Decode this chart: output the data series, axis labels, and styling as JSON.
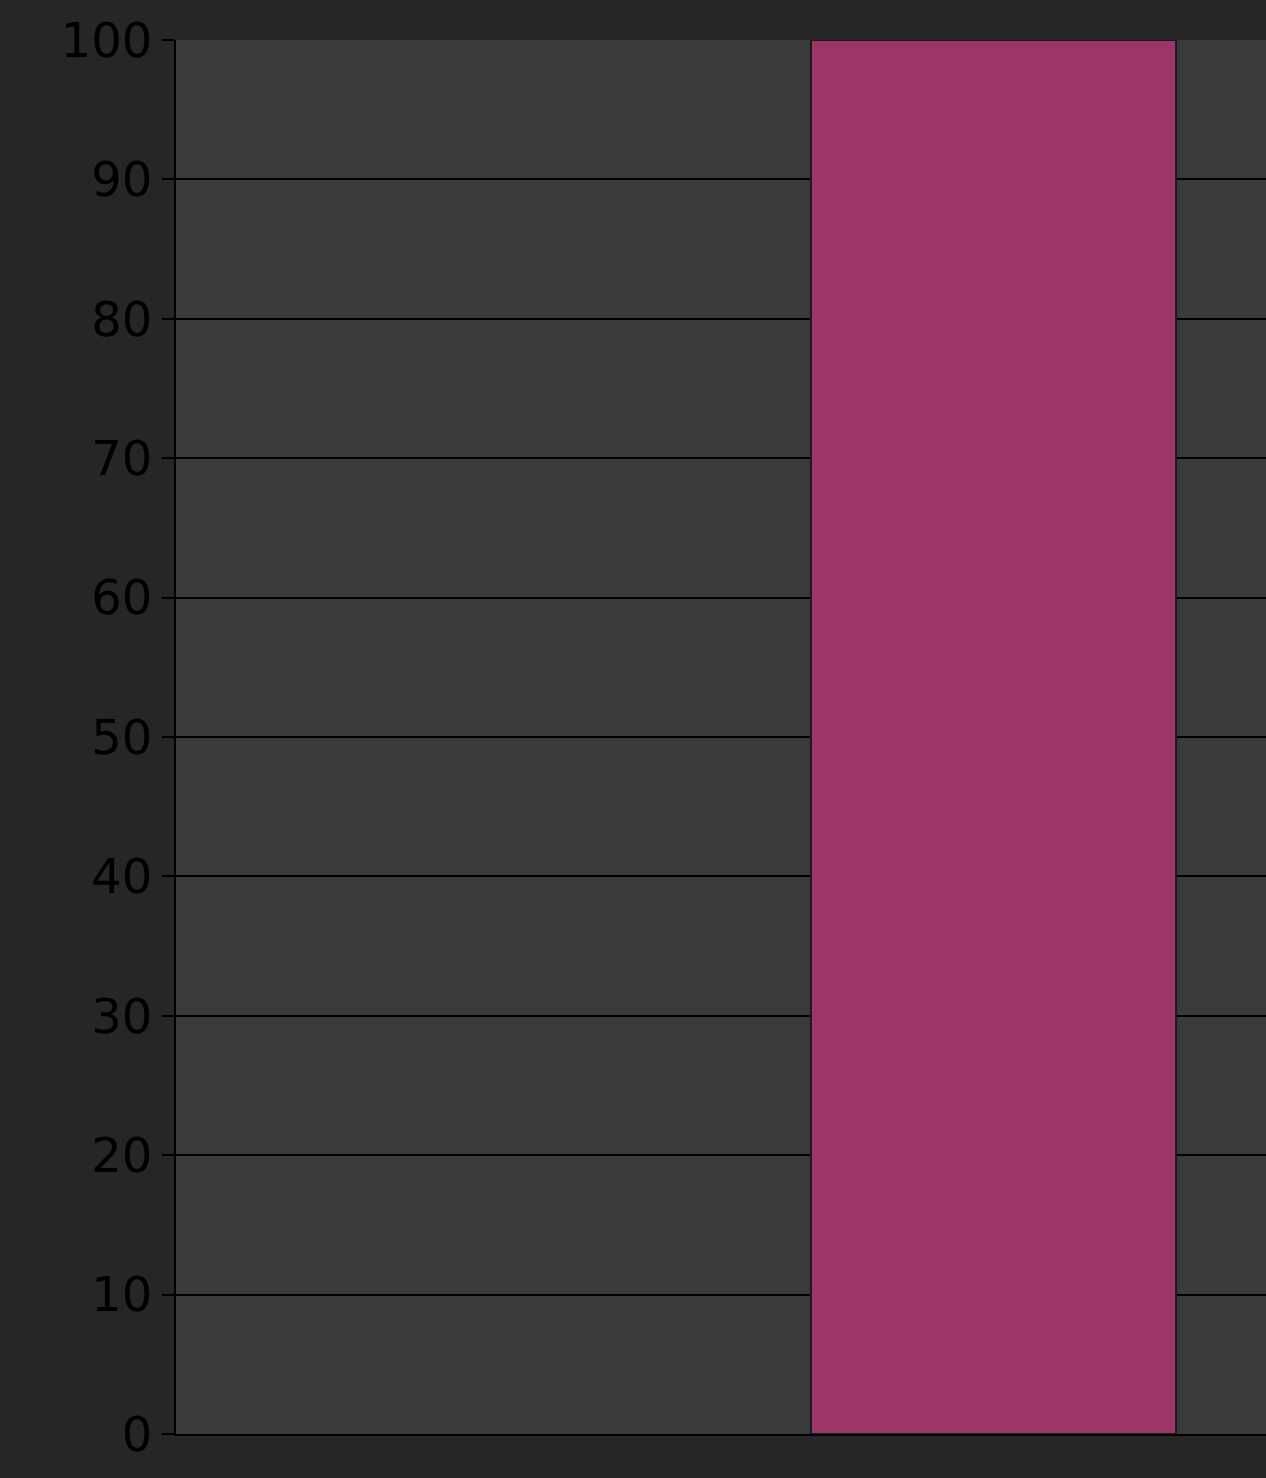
{
  "chart_data": {
    "type": "bar",
    "categories": [
      null,
      null
    ],
    "values": [
      null,
      100
    ],
    "color": "#9b3667",
    "ylim": [
      0,
      100
    ],
    "yticks": [
      0,
      10,
      20,
      30,
      40,
      50,
      60,
      70,
      80,
      90,
      100
    ],
    "grid": "y",
    "tick_labels": "y"
  }
}
